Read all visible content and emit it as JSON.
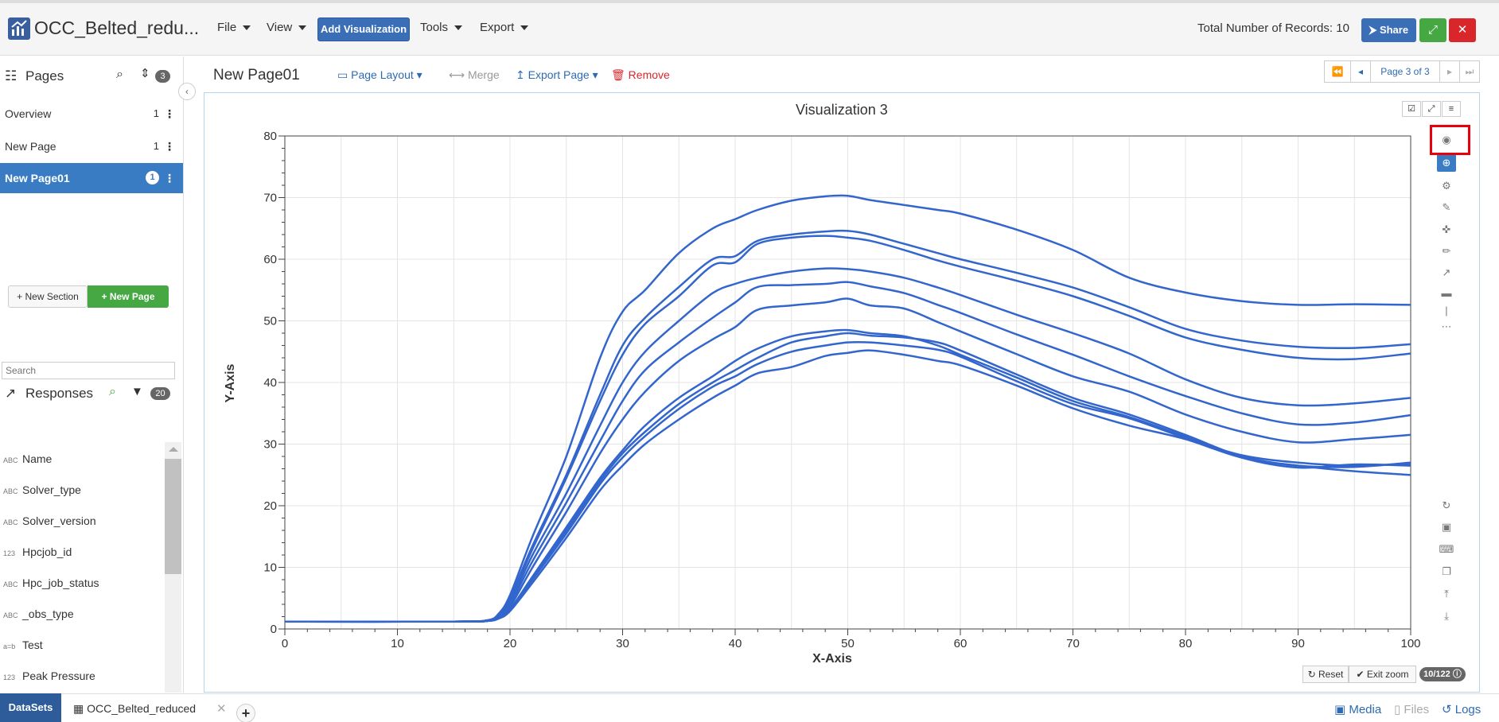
{
  "header": {
    "app_title": "OCC_Belted_redu...",
    "menus": [
      "File",
      "View",
      "Tools",
      "Export"
    ],
    "add_visualization": "Add Visualization",
    "records_label": "Total Number of Records: 10",
    "share_label": "Share"
  },
  "sidebar": {
    "pages_title": "Pages",
    "pages_count": "3",
    "pages": [
      {
        "label": "Overview",
        "count": "1"
      },
      {
        "label": "New Page",
        "count": "1"
      },
      {
        "label": "New Page01",
        "count": "1"
      }
    ],
    "new_section": "New Section",
    "new_page": "New Page",
    "responses_title": "Responses",
    "responses_count": "20",
    "search_placeholder": "Search",
    "responses": [
      {
        "type": "ABC",
        "label": "Name"
      },
      {
        "type": "ABC",
        "label": "Solver_type"
      },
      {
        "type": "ABC",
        "label": "Solver_version"
      },
      {
        "type": "123",
        "label": "Hpcjob_id"
      },
      {
        "type": "ABC",
        "label": "Hpc_job_status"
      },
      {
        "type": "ABC",
        "label": "_obs_type"
      },
      {
        "type": "a=b",
        "label": "Test"
      },
      {
        "type": "123",
        "label": "Peak Pressure"
      }
    ]
  },
  "main": {
    "page_title": "New Page01",
    "page_layout": "Page Layout",
    "merge": "Merge",
    "export_page": "Export Page",
    "remove": "Remove",
    "pager_label": "Page 3 of 3",
    "viz_title": "Visualization 3",
    "reset": "Reset",
    "exit_zoom": "Exit zoom",
    "count_badge": "10/122"
  },
  "bottom": {
    "datasets": "DataSets",
    "file_tab": "OCC_Belted_reduced",
    "media": "Media",
    "files": "Files",
    "logs": "Logs"
  },
  "colors": {
    "primary": "#3a6fb8",
    "success": "#45a843",
    "danger": "#d9262b",
    "series": "#3366cc",
    "highlight": "#e8000b"
  },
  "chart_data": {
    "type": "line",
    "xlabel": "X-Axis",
    "ylabel": "Y-Axis",
    "xlim": [
      0,
      100
    ],
    "ylim": [
      0,
      80
    ],
    "x_ticks": [
      0,
      10,
      20,
      30,
      40,
      50,
      60,
      70,
      80,
      90,
      100
    ],
    "y_ticks": [
      0,
      10,
      20,
      30,
      40,
      50,
      60,
      70,
      80
    ],
    "grid": true,
    "x": [
      0,
      15,
      18,
      19,
      20,
      22,
      25,
      28,
      30,
      32,
      35,
      38,
      40,
      42,
      45,
      48,
      50,
      52,
      55,
      58,
      60,
      65,
      70,
      75,
      80,
      85,
      90,
      95,
      100
    ],
    "series": [
      {
        "values": [
          1.2,
          1.2,
          1.4,
          2.5,
          5.5,
          15,
          28,
          44,
          51.5,
          55,
          61,
          65,
          66.5,
          68,
          69.5,
          70.2,
          70.3,
          69.6,
          68.8,
          68,
          67.4,
          64.8,
          61.5,
          57,
          54.6,
          53.2,
          52.6,
          52.7,
          52.6
        ]
      },
      {
        "values": [
          1.2,
          1.2,
          1.4,
          2.3,
          5,
          13.5,
          25,
          38,
          46,
          50.5,
          55.5,
          60,
          60.5,
          63,
          64,
          64.5,
          64.6,
          64,
          62.5,
          61,
          60,
          57.8,
          55.4,
          52.2,
          48.7,
          46.8,
          45.8,
          45.6,
          46.2
        ]
      },
      {
        "values": [
          1.2,
          1.2,
          1.4,
          2.3,
          4.8,
          13,
          24.5,
          37,
          44.5,
          49.5,
          54,
          59,
          59.5,
          62.5,
          63.5,
          63.8,
          63.5,
          63,
          61.5,
          59.8,
          58.8,
          56.5,
          54,
          50.8,
          47.3,
          45.3,
          44,
          43.8,
          44.7
        ]
      },
      {
        "values": [
          1.2,
          1.2,
          1.4,
          2.1,
          4.3,
          12,
          22,
          33,
          40,
          45,
          50,
          54.5,
          56,
          57,
          58,
          58.5,
          58.4,
          58,
          57,
          55.4,
          54.2,
          51,
          48,
          44.7,
          40.5,
          37.5,
          36.3,
          36.6,
          37.5
        ]
      },
      {
        "values": [
          1.2,
          1.2,
          1.3,
          2,
          4,
          11,
          20.5,
          30.5,
          37,
          42,
          46.5,
          50.5,
          53,
          55.5,
          55.8,
          56,
          56.3,
          55.6,
          54.5,
          52.6,
          51.3,
          47.8,
          44.5,
          41,
          37.8,
          35,
          33.2,
          33.5,
          34.7
        ]
      },
      {
        "values": [
          1.2,
          1.2,
          1.3,
          1.9,
          3.6,
          10,
          19,
          28.5,
          34,
          38.5,
          43.5,
          47,
          49,
          51.8,
          52.5,
          53,
          53.6,
          52.5,
          52,
          49.8,
          48.3,
          44.6,
          41,
          38.5,
          34.8,
          32,
          30.3,
          30.8,
          31.5
        ]
      },
      {
        "values": [
          1.2,
          1.2,
          1.3,
          1.8,
          3.2,
          8.5,
          16.5,
          24.5,
          29,
          33,
          37.5,
          41,
          43.5,
          45.5,
          47.5,
          48.3,
          48.5,
          48,
          47.5,
          46,
          44.5,
          40.8,
          37,
          34.4,
          31.2,
          27.8,
          26.2,
          26.7,
          26.5
        ]
      },
      {
        "values": [
          1.2,
          1.2,
          1.3,
          1.8,
          3.1,
          8.3,
          16,
          24,
          28.5,
          32,
          36.5,
          40,
          42,
          44,
          46.5,
          47.5,
          48,
          47.6,
          47.3,
          46.5,
          45.2,
          41.3,
          37.5,
          34.8,
          31.5,
          28,
          26.5,
          26.3,
          27
        ]
      },
      {
        "values": [
          1.2,
          1.2,
          1.3,
          1.7,
          3,
          8,
          15.5,
          23.5,
          27.8,
          31.3,
          35.7,
          39.3,
          41,
          43,
          45,
          46,
          46.5,
          46.5,
          46,
          45.3,
          44.2,
          40.2,
          36.5,
          34.2,
          31,
          28.2,
          27,
          26.5,
          26.8
        ]
      },
      {
        "values": [
          1.2,
          1.2,
          1.3,
          1.7,
          2.9,
          7.5,
          14.8,
          22.5,
          26.5,
          30,
          34,
          37.5,
          39.5,
          41.5,
          42.5,
          44.3,
          44.8,
          45.2,
          44.5,
          43.5,
          42.8,
          39.5,
          35.8,
          33,
          30.8,
          27.8,
          26.5,
          25.6,
          25
        ]
      }
    ]
  }
}
